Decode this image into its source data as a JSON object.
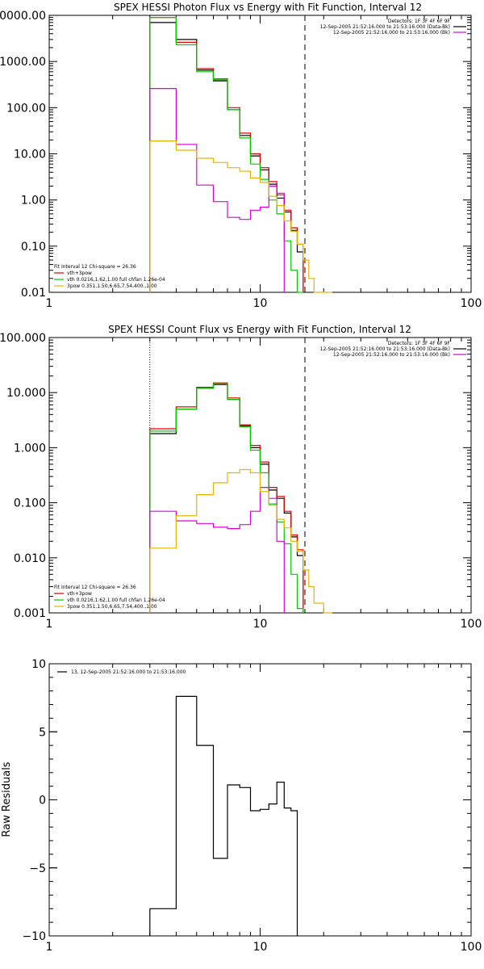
{
  "chart_data": [
    {
      "type": "line",
      "title": "SPEX HESSI Photon Flux vs Energy with Fit Function, Interval 12",
      "xscale": "log",
      "yscale": "log",
      "xlim": [
        1,
        100
      ],
      "ylim": [
        0.01,
        10000
      ],
      "xticks": [
        {
          "v": 1,
          "label": "1"
        },
        {
          "v": 10,
          "label": "10"
        },
        {
          "v": 100,
          "label": "100"
        }
      ],
      "yticks": [
        {
          "v": 10000,
          "label": "10000.00"
        },
        {
          "v": 1000,
          "label": "1000.00"
        },
        {
          "v": 100,
          "label": "100.00"
        },
        {
          "v": 10,
          "label": "10.00"
        },
        {
          "v": 1,
          "label": "1.00"
        },
        {
          "v": 0.1,
          "label": "0.10"
        },
        {
          "v": 0.01,
          "label": "0.01"
        }
      ],
      "ylabel": "",
      "vlines": [
        {
          "x": 3.0,
          "style": "dotted"
        },
        {
          "x": 16.3,
          "style": "dashed"
        }
      ],
      "legend_top_right": [
        "Detectors: 1F 3F 4F 6F 9F",
        "12-Sep-2005 21:52:16.000 to 21:53:16.000 (Data-Bk)",
        "12-Sep-2005 21:52:16.000 to 21:53:16.000 (Bk)"
      ],
      "legend_top_right_colors": [
        "",
        "#000000",
        "#dd00dd"
      ],
      "legend_bottom_left": [
        "Fit Interval 12   Chi-square = 26.36",
        "vth+3pow",
        "vth 0.0216,1.62,1.00  full chfan 1.26e-04",
        "3pow 0.351,1.50,6.65,7.54,400.,1.00"
      ],
      "legend_bottom_left_colors": [
        "",
        "#dd0000",
        "#00cc00",
        "#e6b400"
      ],
      "edges": [
        3,
        4,
        5,
        6,
        7,
        8,
        9,
        10,
        11,
        12,
        13,
        14,
        15,
        16,
        17,
        18,
        20,
        22
      ],
      "series": [
        {
          "color": "#000000",
          "values": [
            7000,
            3000,
            650,
            380,
            90,
            25,
            9,
            4.5,
            2.2,
            1.1,
            0.55,
            0.22,
            0.075,
            null,
            null,
            null,
            null
          ]
        },
        {
          "color": "#dd0000",
          "values": [
            9000,
            2600,
            700,
            420,
            100,
            28,
            10,
            5.0,
            2.5,
            1.3,
            0.6,
            0.25,
            0.11,
            null,
            null,
            null,
            null
          ]
        },
        {
          "color": "#00cc00",
          "values": [
            9000,
            2300,
            600,
            400,
            90,
            22,
            6,
            2.8,
            1.0,
            0.5,
            0.13,
            0.03,
            0.005,
            null,
            null,
            null,
            null
          ]
        },
        {
          "color": "#dd00dd",
          "values": [
            260,
            16,
            2.1,
            0.92,
            0.42,
            0.38,
            0.6,
            0.7,
            2.0,
            1.4,
            null,
            null,
            null,
            null,
            null,
            null,
            null
          ]
        },
        {
          "color": "#e6b400",
          "values": [
            19,
            12,
            8,
            6.5,
            5.0,
            4.2,
            3.0,
            2.4,
            1.2,
            0.76,
            0.35,
            0.21,
            0.11,
            0.05,
            0.02,
            0.01,
            0.005
          ]
        }
      ]
    },
    {
      "type": "line",
      "title": "SPEX HESSI Count Flux vs Energy with Fit Function, Interval 12",
      "xscale": "log",
      "yscale": "log",
      "xlim": [
        1,
        100
      ],
      "ylim": [
        0.001,
        100
      ],
      "xticks": [
        {
          "v": 1,
          "label": "1"
        },
        {
          "v": 10,
          "label": "10"
        },
        {
          "v": 100,
          "label": "100"
        }
      ],
      "yticks": [
        {
          "v": 100,
          "label": "100.000"
        },
        {
          "v": 10,
          "label": "10.000"
        },
        {
          "v": 1,
          "label": "1.000"
        },
        {
          "v": 0.1,
          "label": "0.100"
        },
        {
          "v": 0.01,
          "label": "0.010"
        },
        {
          "v": 0.001,
          "label": "0.001"
        }
      ],
      "ylabel": "",
      "vlines": [
        {
          "x": 3.0,
          "style": "dotted"
        },
        {
          "x": 16.3,
          "style": "dashed"
        }
      ],
      "legend_top_right": [
        "Detectors: 1F 3F 4F 6F 9F",
        "12-Sep-2005 21:52:16.000 to 21:53:16.000 (Data-Bk)",
        "12-Sep-2005 21:52:16.000 to 21:53:16.000 (Bk)"
      ],
      "legend_top_right_colors": [
        "",
        "#000000",
        "#dd00dd"
      ],
      "legend_bottom_left": [
        "Fit Interval 12   Chi-square = 26.36",
        "vth+3pow",
        "vth 0.0216,1.62,1.00  full chfan 1.26e-04",
        "3pow 0.351,1.50,6.65,7.54,400.,1.00"
      ],
      "legend_bottom_left_colors": [
        "",
        "#dd0000",
        "#00cc00",
        "#e6b400"
      ],
      "edges": [
        3,
        4,
        5,
        6,
        7,
        8,
        9,
        10,
        11,
        12,
        13,
        14,
        15,
        16,
        17,
        18,
        20,
        22
      ],
      "series": [
        {
          "color": "#000000",
          "values": [
            1.8,
            5.0,
            12.0,
            14.0,
            7.5,
            2.5,
            1.0,
            0.5,
            0.17,
            0.12,
            0.065,
            0.024,
            0.011,
            null,
            null,
            null,
            null
          ]
        },
        {
          "color": "#dd0000",
          "values": [
            2.2,
            5.5,
            12.5,
            15.0,
            8.0,
            2.6,
            1.1,
            0.55,
            0.19,
            0.13,
            0.07,
            0.026,
            0.014,
            null,
            null,
            null,
            null
          ]
        },
        {
          "color": "#00cc00",
          "values": [
            2.0,
            5.0,
            12.0,
            14.5,
            7.5,
            2.4,
            0.9,
            0.35,
            0.095,
            0.045,
            0.018,
            0.005,
            0.0012,
            null,
            null,
            null,
            null
          ]
        },
        {
          "color": "#dd00dd",
          "values": [
            0.07,
            0.047,
            0.042,
            0.036,
            0.034,
            0.04,
            0.07,
            0.19,
            0.12,
            0.02,
            null,
            null,
            null,
            null,
            null,
            null,
            null
          ]
        },
        {
          "color": "#e6b400",
          "values": [
            0.015,
            0.058,
            0.14,
            0.23,
            0.35,
            0.4,
            0.35,
            0.16,
            0.09,
            0.05,
            0.035,
            0.02,
            0.013,
            0.006,
            0.003,
            0.0015,
            0.0005
          ]
        }
      ]
    },
    {
      "type": "line",
      "title": "",
      "xscale": "log",
      "yscale": "linear",
      "xlim": [
        1,
        100
      ],
      "ylim": [
        -10,
        10
      ],
      "xticks": [
        {
          "v": 1,
          "label": "1"
        },
        {
          "v": 10,
          "label": "10"
        },
        {
          "v": 100,
          "label": "100"
        }
      ],
      "yticks": [
        {
          "v": 10,
          "label": "10"
        },
        {
          "v": 5,
          "label": "5"
        },
        {
          "v": 0,
          "label": "0"
        },
        {
          "v": -5,
          "label": "−5"
        },
        {
          "v": -10,
          "label": "−10"
        }
      ],
      "ylabel": "Raw Residuals",
      "vlines": [],
      "legend_top_right": [],
      "legend_top_right_colors": [],
      "legend_bottom_left": [],
      "legend_bottom_left_colors": [],
      "legend_top_left": "13, 12-Sep-2005 21:52:16.000 to 21:53:16.000",
      "edges": [
        3,
        4,
        5,
        6,
        7,
        8,
        9,
        10,
        11,
        12,
        13,
        14,
        15,
        16,
        17
      ],
      "series": [
        {
          "color": "#000000",
          "values": [
            -8,
            7.6,
            4.0,
            -4.3,
            1.1,
            0.9,
            -0.8,
            -0.7,
            -0.3,
            1.3,
            -0.6,
            -0.8,
            null,
            null
          ]
        }
      ]
    }
  ]
}
